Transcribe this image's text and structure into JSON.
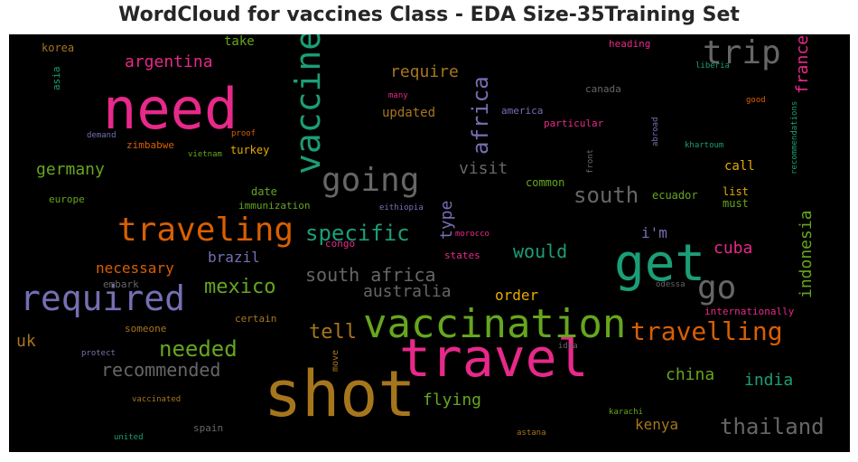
{
  "title": "WordCloud for vaccines Class - EDA Size-35Training Set",
  "chart_data": {
    "type": "wordcloud",
    "background": "#000000",
    "palette": "Dark2",
    "words": [
      {
        "text": "shot",
        "color": "#a6761d"
      },
      {
        "text": "need",
        "color": "#e7298a"
      },
      {
        "text": "travel",
        "color": "#e7298a"
      },
      {
        "text": "vaccination",
        "color": "#66a61e"
      },
      {
        "text": "get",
        "color": "#1b9e77"
      },
      {
        "text": "required",
        "color": "#7570b3"
      },
      {
        "text": "vaccine",
        "color": "#1b9e77"
      },
      {
        "text": "going",
        "color": "#666666"
      },
      {
        "text": "traveling",
        "color": "#d95f02"
      },
      {
        "text": "trip",
        "color": "#666666"
      },
      {
        "text": "go",
        "color": "#666666"
      },
      {
        "text": "travelling",
        "color": "#d95f02"
      },
      {
        "text": "specific",
        "color": "#1b9e77"
      },
      {
        "text": "south",
        "color": "#666666"
      },
      {
        "text": "needed",
        "color": "#66a61e"
      },
      {
        "text": "recommended",
        "color": "#666666"
      },
      {
        "text": "thailand",
        "color": "#666666"
      },
      {
        "text": "south africa",
        "color": "#666666"
      },
      {
        "text": "mexico",
        "color": "#66a61e"
      },
      {
        "text": "africa",
        "color": "#7570b3"
      },
      {
        "text": "tell",
        "color": "#a6761d"
      },
      {
        "text": "indonesia",
        "color": "#66a61e"
      },
      {
        "text": "argentina",
        "color": "#e7298a"
      },
      {
        "text": "australia",
        "color": "#666666"
      },
      {
        "text": "cuba",
        "color": "#e7298a"
      },
      {
        "text": "would",
        "color": "#1b9e77"
      },
      {
        "text": "germany",
        "color": "#66a61e"
      },
      {
        "text": "require",
        "color": "#a6761d"
      },
      {
        "text": "visit",
        "color": "#666666"
      },
      {
        "text": "france",
        "color": "#e7298a"
      },
      {
        "text": "flying",
        "color": "#66a61e"
      },
      {
        "text": "china",
        "color": "#66a61e"
      },
      {
        "text": "india",
        "color": "#1b9e77"
      },
      {
        "text": "kenya",
        "color": "#a6761d"
      },
      {
        "text": "type",
        "color": "#7570b3"
      },
      {
        "text": "order",
        "color": "#e6ab02"
      },
      {
        "text": "uk",
        "color": "#a6761d"
      },
      {
        "text": "necessary",
        "color": "#d95f02"
      },
      {
        "text": "brazil",
        "color": "#7570b3"
      },
      {
        "text": "updated",
        "color": "#a6761d"
      },
      {
        "text": "take",
        "color": "#66a61e"
      },
      {
        "text": "i'm",
        "color": "#7570b3"
      },
      {
        "text": "call",
        "color": "#e6ab02"
      },
      {
        "text": "date",
        "color": "#66a61e"
      },
      {
        "text": "korea",
        "color": "#a6761d"
      },
      {
        "text": "list",
        "color": "#e6ab02"
      },
      {
        "text": "must",
        "color": "#66a61e"
      },
      {
        "text": "ecuador",
        "color": "#66a61e"
      },
      {
        "text": "common",
        "color": "#66a61e"
      },
      {
        "text": "immunization",
        "color": "#66a61e"
      },
      {
        "text": "zimbabwe",
        "color": "#d95f02"
      },
      {
        "text": "turkey",
        "color": "#e6ab02"
      },
      {
        "text": "canada",
        "color": "#666666"
      },
      {
        "text": "particular",
        "color": "#e7298a"
      },
      {
        "text": "america",
        "color": "#7570b3"
      },
      {
        "text": "heading",
        "color": "#e7298a"
      },
      {
        "text": "europe",
        "color": "#66a61e"
      },
      {
        "text": "asia",
        "color": "#1b9e77"
      },
      {
        "text": "states",
        "color": "#e7298a"
      },
      {
        "text": "congo",
        "color": "#e7298a"
      },
      {
        "text": "embark",
        "color": "#666666"
      },
      {
        "text": "certain",
        "color": "#a6761d"
      },
      {
        "text": "someone",
        "color": "#a6761d"
      },
      {
        "text": "internationally",
        "color": "#e7298a"
      },
      {
        "text": "proof",
        "color": "#d95f02"
      },
      {
        "text": "demand",
        "color": "#7570b3"
      },
      {
        "text": "vietnam",
        "color": "#66a61e"
      },
      {
        "text": "many",
        "color": "#e7298a"
      },
      {
        "text": "eithiopia",
        "color": "#7570b3"
      },
      {
        "text": "morocco",
        "color": "#e7298a"
      },
      {
        "text": "odessa",
        "color": "#666666"
      },
      {
        "text": "idea",
        "color": "#666666"
      },
      {
        "text": "protect",
        "color": "#7570b3"
      },
      {
        "text": "move",
        "color": "#a6761d"
      },
      {
        "text": "vaccinated",
        "color": "#a6761d"
      },
      {
        "text": "spain",
        "color": "#666666"
      },
      {
        "text": "united",
        "color": "#1b9e77"
      },
      {
        "text": "astana",
        "color": "#a6761d"
      },
      {
        "text": "karachi",
        "color": "#66a61e"
      },
      {
        "text": "liberia",
        "color": "#1b9e77"
      },
      {
        "text": "good",
        "color": "#d95f02"
      },
      {
        "text": "abroad",
        "color": "#7570b3"
      },
      {
        "text": "front",
        "color": "#666666"
      },
      {
        "text": "khartoum",
        "color": "#1b9e77"
      },
      {
        "text": "recommendations",
        "color": "#1b9e77"
      }
    ]
  }
}
